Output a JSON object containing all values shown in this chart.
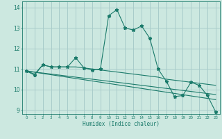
{
  "xlabel": "Humidex (Indice chaleur)",
  "xlim": [
    -0.5,
    23.5
  ],
  "ylim": [
    8.8,
    14.3
  ],
  "yticks": [
    9,
    10,
    11,
    12,
    13,
    14
  ],
  "xticks": [
    0,
    1,
    2,
    3,
    4,
    5,
    6,
    7,
    8,
    9,
    10,
    11,
    12,
    13,
    14,
    15,
    16,
    17,
    18,
    19,
    20,
    21,
    22,
    23
  ],
  "bg_color": "#cce8e0",
  "line_color": "#1a7a6a",
  "grid_color": "#a8ccca",
  "line1_x": [
    0,
    1,
    2,
    3,
    4,
    5,
    6,
    7,
    8,
    9,
    10,
    11,
    12,
    13,
    14,
    15,
    16,
    17,
    18,
    19,
    20,
    21,
    22,
    23
  ],
  "line1_y": [
    10.9,
    10.7,
    11.2,
    11.1,
    11.1,
    11.1,
    11.55,
    11.05,
    10.95,
    11.0,
    13.6,
    13.9,
    13.0,
    12.9,
    13.1,
    12.5,
    11.0,
    10.4,
    9.65,
    9.7,
    10.35,
    10.2,
    9.7,
    8.9
  ],
  "line2_x": [
    0,
    1,
    2,
    3,
    4,
    5,
    6,
    7,
    8,
    9,
    10,
    11,
    12,
    13,
    14,
    15,
    16,
    17,
    18,
    19,
    20,
    21,
    22,
    23
  ],
  "line2_y": [
    10.9,
    10.75,
    11.2,
    11.1,
    11.1,
    11.1,
    11.1,
    11.05,
    11.0,
    10.95,
    10.9,
    10.85,
    10.8,
    10.75,
    10.7,
    10.65,
    10.6,
    10.5,
    10.45,
    10.4,
    10.35,
    10.3,
    10.25,
    10.2
  ],
  "line3_x": [
    0,
    23
  ],
  "line3_y": [
    10.9,
    9.5
  ],
  "line4_x": [
    0,
    23
  ],
  "line4_y": [
    10.9,
    9.75
  ],
  "marker_size": 2.5
}
